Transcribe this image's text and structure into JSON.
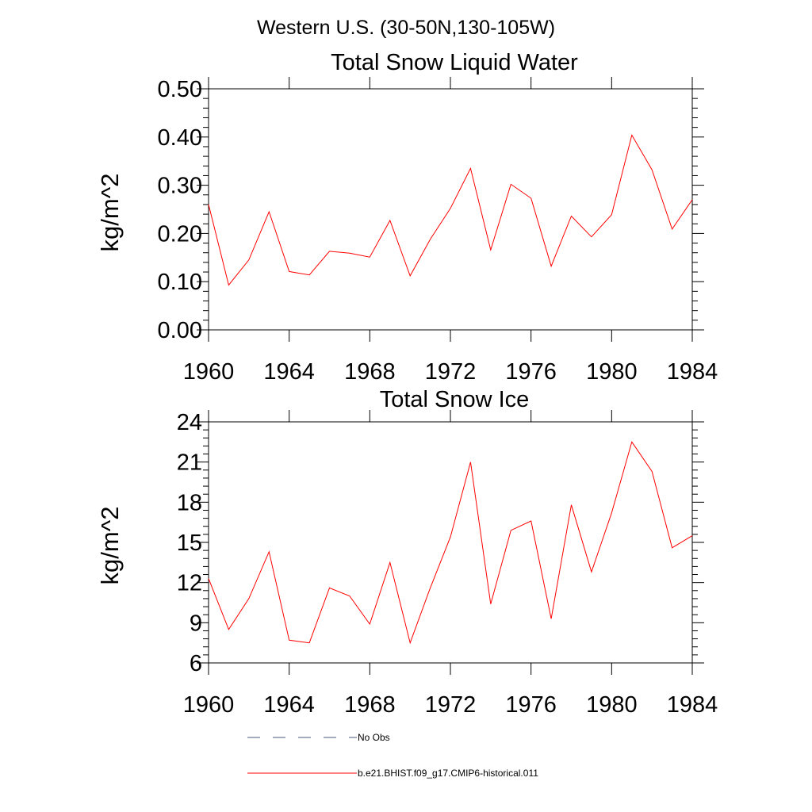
{
  "figure": {
    "suptitle": "Western U.S. (30-50N,130-105W)"
  },
  "chart_data": [
    {
      "type": "line",
      "title": "Total Snow Liquid Water",
      "xlabel": "",
      "ylabel": "kg/m^2",
      "xlim": [
        1960,
        1984
      ],
      "ylim": [
        0.0,
        0.5
      ],
      "x_ticks": [
        "1960",
        "1964",
        "1968",
        "1972",
        "1976",
        "1980",
        "1984"
      ],
      "y_ticks": [
        "0.00",
        "0.10",
        "0.20",
        "0.30",
        "0.40",
        "0.50"
      ],
      "grid": false,
      "series": [
        {
          "name": "b.e21.BHIST.f09_g17.CMIP6-historical.011",
          "color": "#ff0000",
          "x": [
            1960,
            1961,
            1962,
            1963,
            1964,
            1965,
            1966,
            1967,
            1968,
            1969,
            1970,
            1971,
            1972,
            1973,
            1974,
            1975,
            1976,
            1977,
            1978,
            1979,
            1980,
            1981,
            1982,
            1983,
            1984
          ],
          "y": [
            0.26,
            0.093,
            0.145,
            0.245,
            0.121,
            0.114,
            0.163,
            0.159,
            0.151,
            0.227,
            0.112,
            0.188,
            0.252,
            0.335,
            0.166,
            0.302,
            0.273,
            0.132,
            0.236,
            0.193,
            0.239,
            0.404,
            0.332,
            0.209,
            0.27
          ]
        }
      ]
    },
    {
      "type": "line",
      "title": "Total Snow Ice",
      "xlabel": "",
      "ylabel": "kg/m^2",
      "xlim": [
        1960,
        1984
      ],
      "ylim": [
        6,
        24
      ],
      "x_ticks": [
        "1960",
        "1964",
        "1968",
        "1972",
        "1976",
        "1980",
        "1984"
      ],
      "y_ticks": [
        "6",
        "9",
        "12",
        "15",
        "18",
        "21",
        "24"
      ],
      "grid": false,
      "series": [
        {
          "name": "b.e21.BHIST.f09_g17.CMIP6-historical.011",
          "color": "#ff0000",
          "x": [
            1960,
            1961,
            1962,
            1963,
            1964,
            1965,
            1966,
            1967,
            1968,
            1969,
            1970,
            1971,
            1972,
            1973,
            1974,
            1975,
            1976,
            1977,
            1978,
            1979,
            1980,
            1981,
            1982,
            1983,
            1984
          ],
          "y": [
            12.3,
            8.5,
            10.8,
            14.3,
            7.7,
            7.5,
            11.6,
            11.0,
            8.9,
            13.5,
            7.5,
            11.6,
            15.4,
            21.0,
            10.4,
            15.9,
            16.6,
            9.3,
            17.8,
            12.8,
            17.2,
            22.5,
            20.3,
            14.6,
            15.5
          ]
        }
      ]
    }
  ],
  "legend": {
    "placement": "bottom",
    "items": [
      {
        "label": "No Obs",
        "color": "#4a5a7a",
        "style": "dashed"
      },
      {
        "label": "b.e21.BHIST.f09_g17.CMIP6-historical.011",
        "color": "#ff0000",
        "style": "solid"
      }
    ]
  }
}
